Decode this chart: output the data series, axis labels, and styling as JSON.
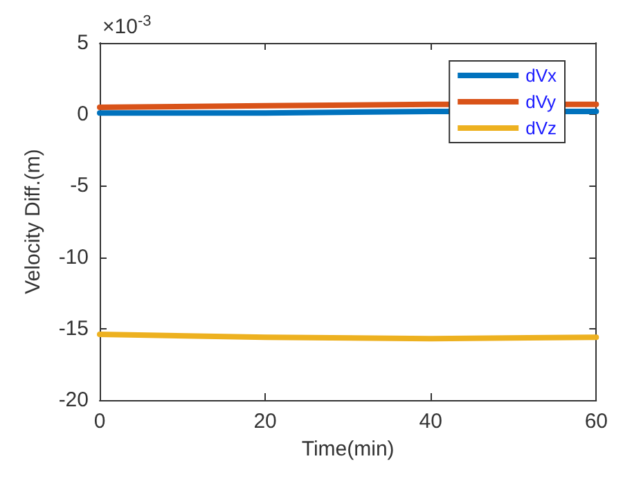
{
  "chart_data": {
    "type": "line",
    "xlabel": "Time(min)",
    "ylabel": "Velocity Diff.(m)",
    "annotations": [
      "×10$^{-3}$"
    ],
    "x": [
      0,
      20,
      40,
      60
    ],
    "series": [
      {
        "name": "dVx",
        "color": "#0072bd",
        "values": [
          0.1,
          0.1,
          0.2,
          0.2
        ]
      },
      {
        "name": "dVy",
        "color": "#d95319",
        "values": [
          0.5,
          0.6,
          0.7,
          0.7
        ]
      },
      {
        "name": "dVz",
        "color": "#edb120",
        "values": [
          -15.4,
          -15.6,
          -15.7,
          -15.6
        ]
      }
    ],
    "xlim": [
      0,
      60
    ],
    "xticks": [
      0,
      20,
      40,
      60
    ],
    "ylim": [
      -20,
      5
    ],
    "yticks": [
      -20,
      -15,
      -10,
      -5,
      0,
      5
    ],
    "grid": false,
    "legend": "top right",
    "marker": "none",
    "line_style": "solid"
  }
}
